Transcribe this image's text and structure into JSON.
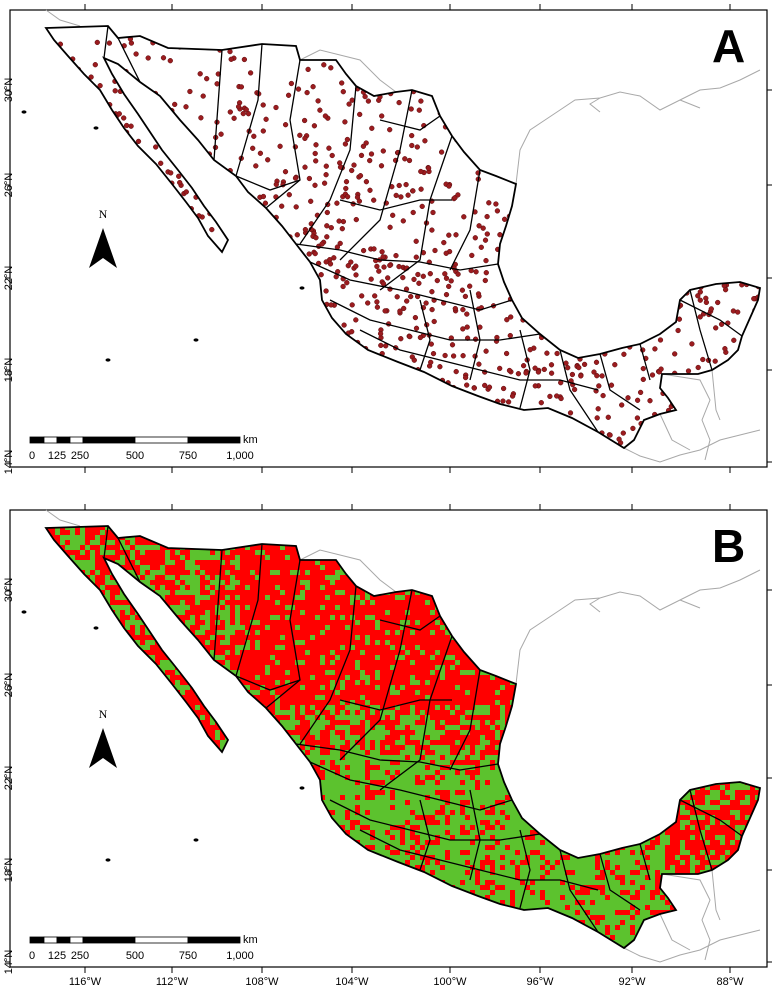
{
  "panels": [
    {
      "label": "A",
      "fill_mode": "points",
      "point_color": "#9b1c1f",
      "point_edge_color": "#5a0d0f"
    },
    {
      "label": "B",
      "fill_mode": "raster",
      "primary_color": "#ff0000",
      "secondary_color": "#5cc22e"
    }
  ],
  "latitude_ticks": [
    "30°N",
    "26°N",
    "22°N",
    "18°N",
    "14°N"
  ],
  "longitude_ticks": [
    "116°W",
    "112°W",
    "108°W",
    "104°W",
    "100°W",
    "96°W",
    "92°W",
    "88°W"
  ],
  "scale_bar": {
    "unit": "km",
    "labels": [
      "0",
      "125",
      "250",
      "500",
      "750",
      "1,000"
    ]
  },
  "north_arrow": {
    "label": "N",
    "icon": "north-arrow-icon"
  },
  "colors": {
    "state_border": "#000000",
    "neighbor_border": "#a8a8a8",
    "frame": "#000000"
  }
}
